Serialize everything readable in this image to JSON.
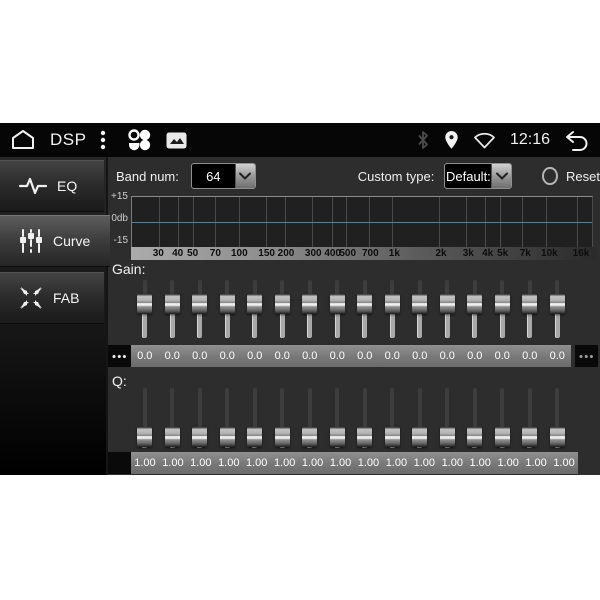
{
  "status_bar": {
    "title": "DSP",
    "time": "12:16",
    "icons": [
      "home-icon",
      "kebab-menu-icon",
      "apps-icon",
      "gallery-icon",
      "bluetooth-icon",
      "location-icon",
      "wifi-icon",
      "back-icon"
    ]
  },
  "sidebar": {
    "items": [
      {
        "label": "EQ",
        "icon": "waveform-icon",
        "selected": false
      },
      {
        "label": "Curve",
        "icon": "sliders-icon",
        "selected": true
      },
      {
        "label": "FAB",
        "icon": "fab-arrows-icon",
        "selected": false
      }
    ]
  },
  "controls": {
    "band_num_label": "Band num:",
    "band_num_value": "64",
    "custom_type_label": "Custom type:",
    "custom_type_value": "Default:",
    "reset_label": "Reset"
  },
  "eq_graph": {
    "y_axis_labels": [
      "+15",
      "0db",
      "-15"
    ],
    "y_range_db": [
      -15,
      15
    ],
    "freq_scale": "log",
    "freq_min_hz": 20,
    "freq_max_hz": 20000,
    "frequencies": [
      {
        "label": "30",
        "hz": 30
      },
      {
        "label": "40",
        "hz": 40
      },
      {
        "label": "50",
        "hz": 50
      },
      {
        "label": "70",
        "hz": 70
      },
      {
        "label": "100",
        "hz": 100
      },
      {
        "label": "150",
        "hz": 150
      },
      {
        "label": "200",
        "hz": 200
      },
      {
        "label": "300",
        "hz": 300
      },
      {
        "label": "400",
        "hz": 400
      },
      {
        "label": "500",
        "hz": 500
      },
      {
        "label": "700",
        "hz": 700
      },
      {
        "label": "1k",
        "hz": 1000
      },
      {
        "label": "2k",
        "hz": 2000
      },
      {
        "label": "3k",
        "hz": 3000
      },
      {
        "label": "4k",
        "hz": 4000
      },
      {
        "label": "5k",
        "hz": 5000
      },
      {
        "label": "7k",
        "hz": 7000
      },
      {
        "label": "10k",
        "hz": 10000
      },
      {
        "label": "16k",
        "hz": 16000
      }
    ],
    "zero_line_color": "#4e86a0",
    "curve_db": 0
  },
  "gain": {
    "label": "Gain:",
    "more_symbol": "●●●",
    "values": [
      "0.0",
      "0.0",
      "0.0",
      "0.0",
      "0.0",
      "0.0",
      "0.0",
      "0.0",
      "0.0",
      "0.0",
      "0.0",
      "0.0",
      "0.0",
      "0.0",
      "0.0",
      "0.0"
    ],
    "slider_thumb_pct": 42
  },
  "q": {
    "label": "Q:",
    "values": [
      "1.00",
      "1.00",
      "1.00",
      "1.00",
      "1.00",
      "1.00",
      "1.00",
      "1.00",
      "1.00",
      "1.00",
      "1.00",
      "1.00",
      "1.00",
      "1.00",
      "1.00",
      "1.00"
    ],
    "slider_thumb_pct": 80
  }
}
